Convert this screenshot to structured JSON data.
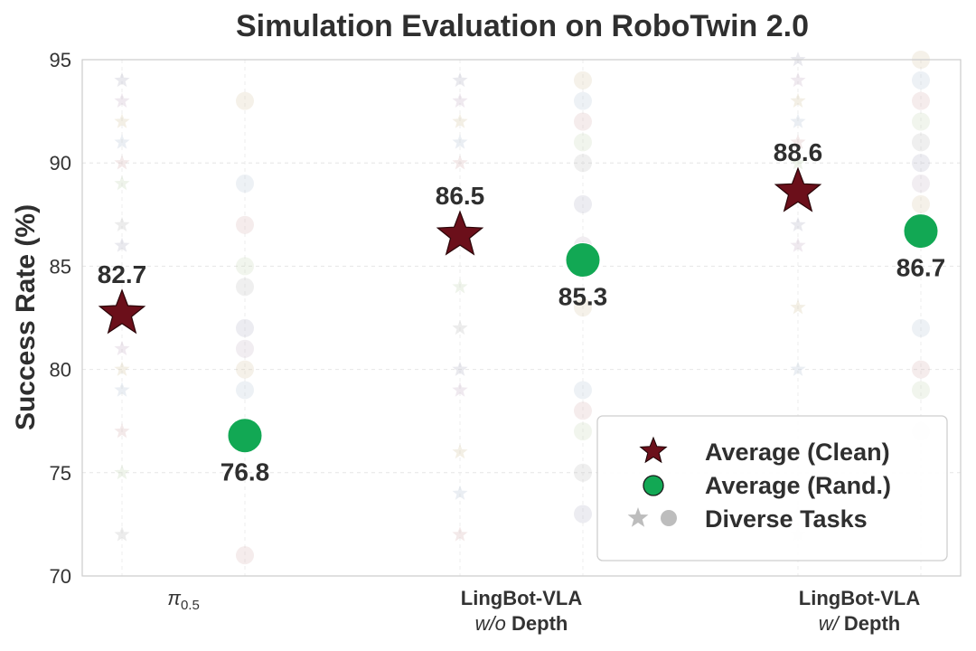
{
  "chart_data": {
    "type": "scatter",
    "title": "Simulation Evaluation on RoboTwin 2.0",
    "ylabel": "Success Rate (%)",
    "xlabel": "",
    "ylim": [
      70,
      95
    ],
    "yticks": [
      "70",
      "75",
      "80",
      "85",
      "90",
      "95"
    ],
    "grid": true,
    "legend_placement": "lower-right",
    "categories": [
      {
        "lines": [
          [
            {
              "t": "π",
              "style": "italic"
            },
            {
              "t": "0.5",
              "style": "sub"
            }
          ]
        ]
      },
      {
        "lines": [
          [
            {
              "t": "LingBot-VLA",
              "style": "bold"
            }
          ],
          [
            {
              "t": "w/o",
              "style": "italic"
            },
            {
              "t": " Depth",
              "style": "bold"
            }
          ]
        ]
      },
      {
        "lines": [
          [
            {
              "t": "LingBot-VLA",
              "style": "bold"
            }
          ],
          [
            {
              "t": "w/",
              "style": "italic"
            },
            {
              "t": " Depth",
              "style": "bold"
            }
          ]
        ]
      }
    ],
    "series": [
      {
        "name": "Average (Clean)",
        "marker": "star",
        "color": "#6b0f1a",
        "values": [
          82.7,
          86.5,
          88.6
        ],
        "labels": [
          "82.7",
          "86.5",
          "88.6"
        ],
        "label_position": "above"
      },
      {
        "name": "Average (Rand.)",
        "marker": "circle",
        "color": "#12a854",
        "values": [
          76.8,
          85.3,
          86.7
        ],
        "labels": [
          "76.8",
          "85.3",
          "86.7"
        ],
        "label_position": "below"
      },
      {
        "name": "Diverse Tasks",
        "marker": "star+circle",
        "color": "#bbbbbb"
      }
    ],
    "diverse_tasks": {
      "clean": [
        [
          94,
          93,
          92,
          91,
          90,
          89,
          87,
          86,
          81,
          80,
          79,
          77,
          75,
          72
        ],
        [
          94,
          93,
          92,
          91,
          90,
          84,
          82,
          80,
          79,
          76,
          74,
          72
        ],
        [
          95,
          94,
          93,
          92,
          91,
          90,
          89,
          87,
          86,
          83,
          80,
          73,
          72
        ]
      ],
      "rand": [
        [
          93,
          89,
          87,
          85,
          84,
          82,
          81,
          80,
          79,
          71
        ],
        [
          94,
          93,
          92,
          91,
          90,
          88,
          86,
          83,
          79,
          78,
          77,
          75,
          73
        ],
        [
          95,
          94,
          93,
          92,
          91,
          90,
          89,
          88,
          82,
          80,
          79,
          77
        ]
      ],
      "colors": [
        "#b5b5c8",
        "#c9b6c9",
        "#d8c9a8",
        "#b9c7d8",
        "#d6b5b5",
        "#c7d6b9",
        "#c0c0c0"
      ]
    }
  }
}
